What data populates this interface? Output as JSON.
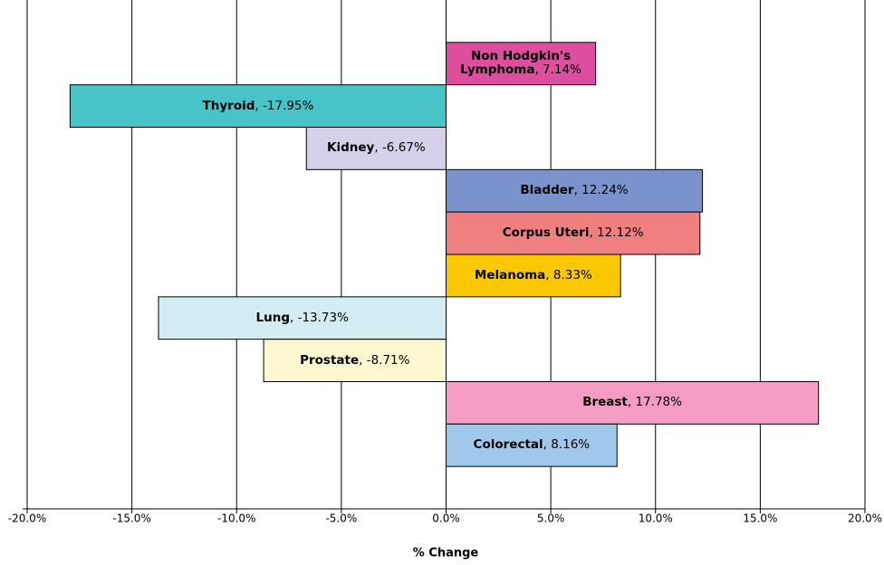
{
  "chart_data": {
    "type": "barh",
    "x_label": "% Change",
    "categories": [
      "Non Hodgkin's Lymphoma",
      "Thyroid",
      "Kidney",
      "Bladder",
      "Corpus Uteri",
      "Melanoma",
      "Lung",
      "Prostate",
      "Breast",
      "Colorectal"
    ],
    "values": [
      7.14,
      -17.95,
      -6.67,
      12.24,
      12.12,
      8.33,
      -13.73,
      -8.71,
      17.78,
      8.16
    ],
    "value_labels": [
      "7.14%",
      "-17.95%",
      "-6.67%",
      "12.24%",
      "12.12%",
      "8.33%",
      "-13.73%",
      "-8.71%",
      "17.78%",
      "8.16%"
    ],
    "colors": [
      "#dd4f9e",
      "#48c3c6",
      "#d6d0ea",
      "#7a93cc",
      "#f07f80",
      "#f9c800",
      "#d2edf4",
      "#fdf8cf",
      "#f49cc3",
      "#9fc8ea"
    ],
    "xlim": [
      -20,
      20
    ],
    "xticks": [
      {
        "value": -20,
        "label": "-20.0%"
      },
      {
        "value": -15,
        "label": "-15.0%"
      },
      {
        "value": -10,
        "label": "-10.0%"
      },
      {
        "value": -5,
        "label": "-5.0%"
      },
      {
        "value": 0,
        "label": "0.0%"
      },
      {
        "value": 5,
        "label": "5.0%"
      },
      {
        "value": 10,
        "label": "10.0%"
      },
      {
        "value": 15,
        "label": "15.0%"
      },
      {
        "value": 20,
        "label": "20.0%"
      }
    ],
    "grid": true
  }
}
